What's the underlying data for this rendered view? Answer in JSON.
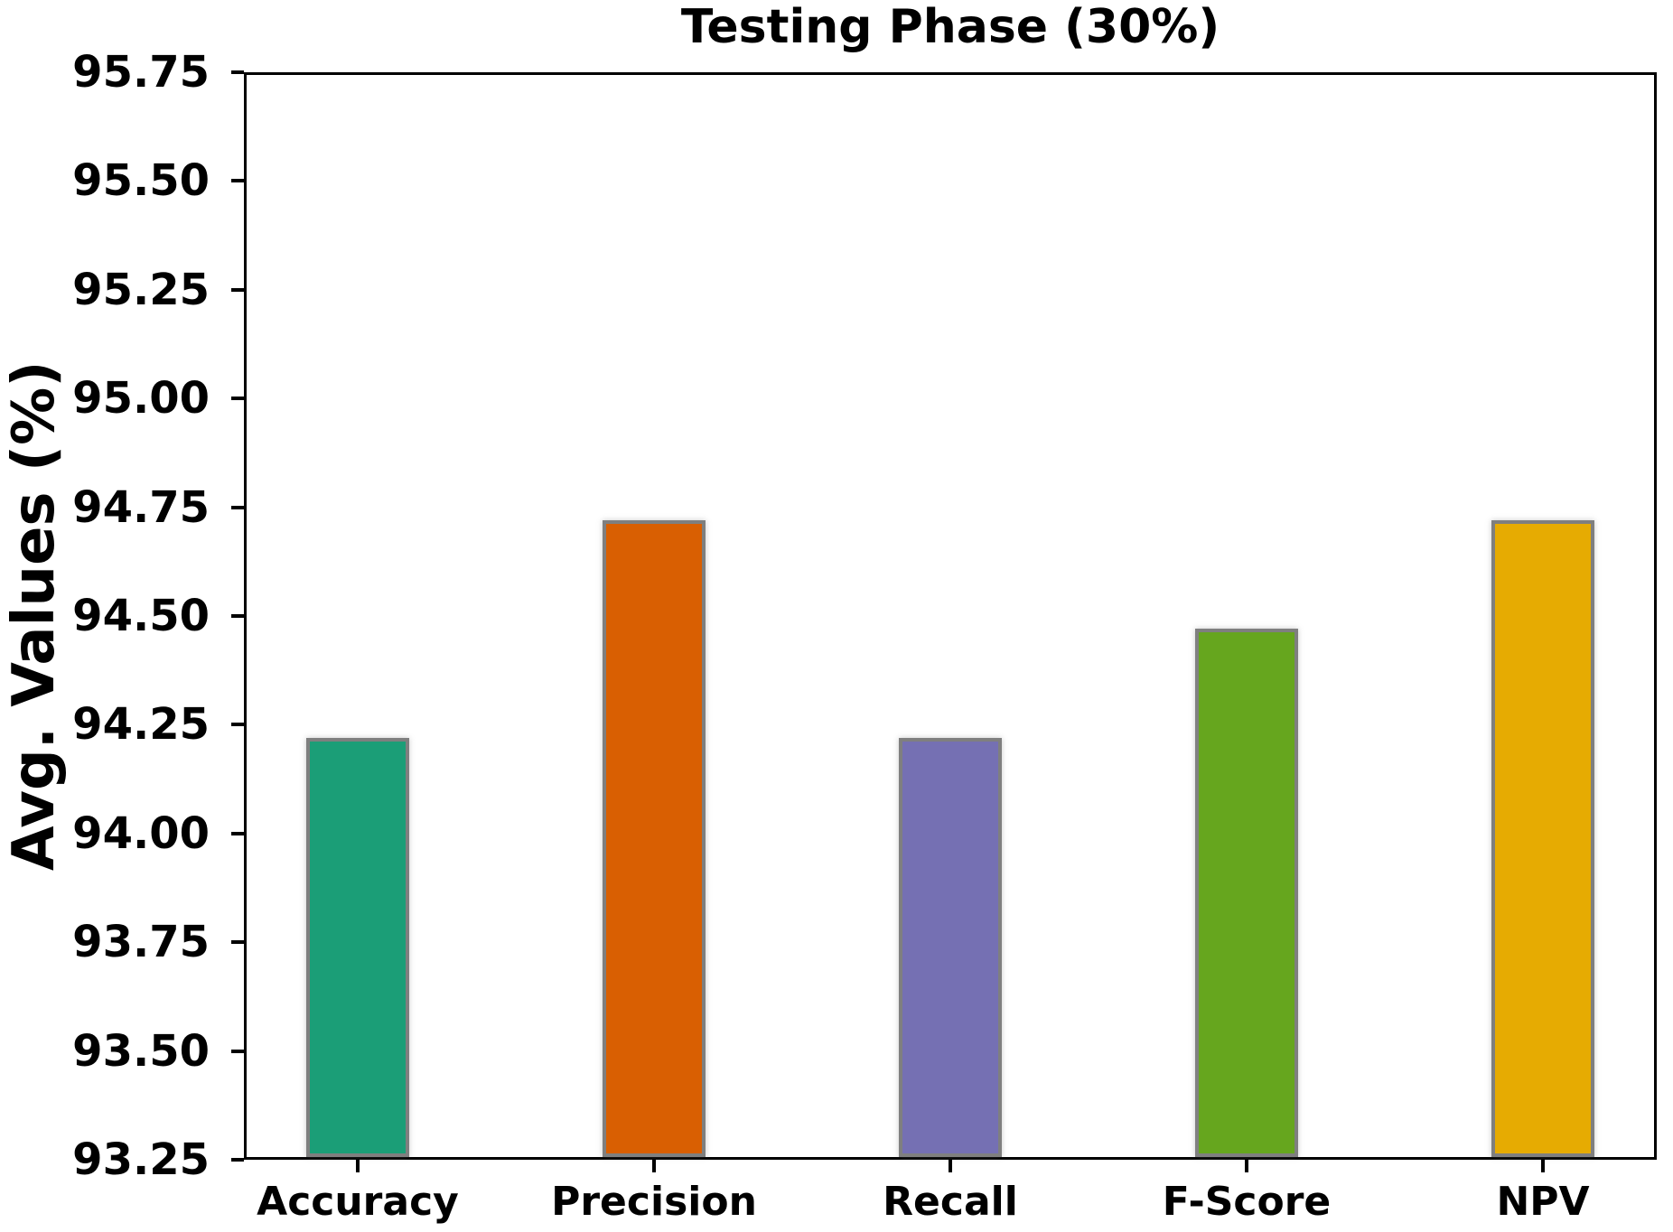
{
  "chart_data": {
    "type": "bar",
    "title": "Testing Phase (30%)",
    "xlabel": "",
    "ylabel": "Avg. Values (%)",
    "categories": [
      "Accuracy",
      "Precision",
      "Recall",
      "F-Score",
      "NPV"
    ],
    "values": [
      94.22,
      94.72,
      94.22,
      94.47,
      94.72
    ],
    "bar_colors": [
      "#1b9e77",
      "#d95f02",
      "#7570b3",
      "#66a61e",
      "#e6ab02"
    ],
    "bar_edge_color": "#7f7f7f",
    "ylim": [
      93.25,
      95.75
    ],
    "y_tick_step": 0.25,
    "y_ticks": [
      "95.75",
      "95.50",
      "95.25",
      "95.00",
      "94.75",
      "94.50",
      "94.25",
      "94.00",
      "93.75",
      "93.50",
      "93.25"
    ],
    "grid": "off",
    "legend": "none",
    "axis_color": "#000000",
    "background_color": "#ffffff"
  }
}
